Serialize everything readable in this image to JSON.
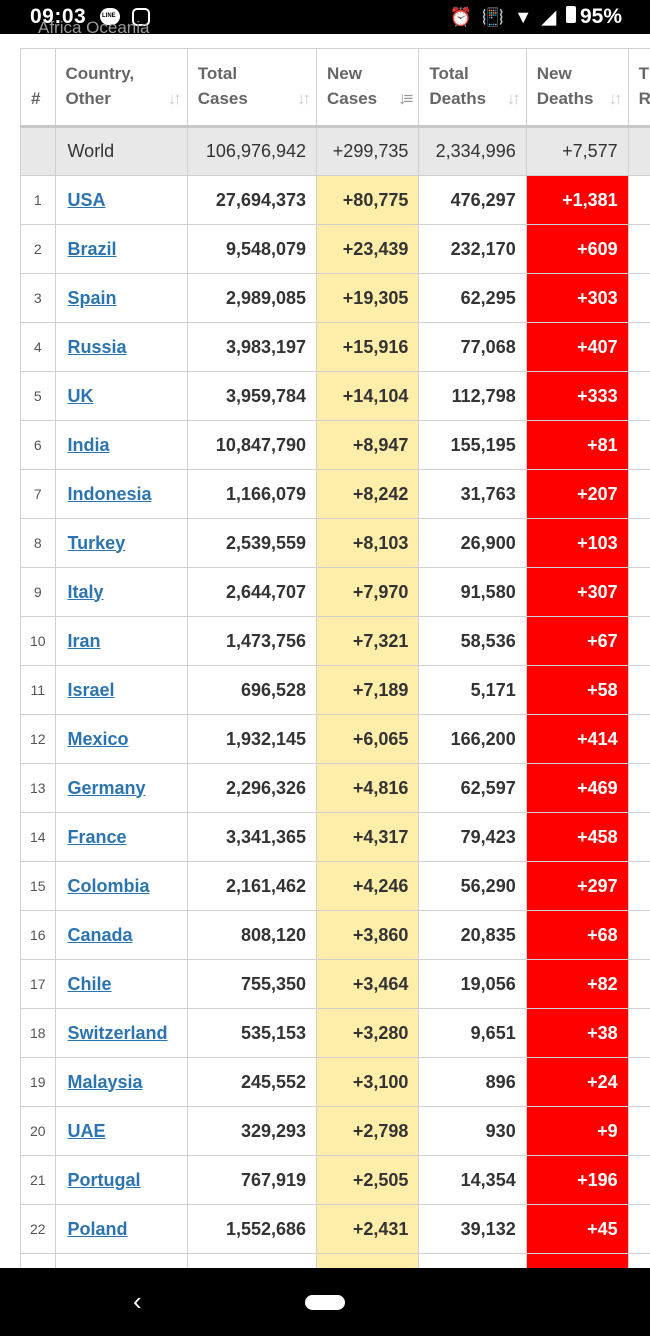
{
  "status_bar": {
    "time": "09:03",
    "battery": "95%",
    "icons": [
      "line-app-icon",
      "sync-icon",
      "alarm-icon",
      "vibrate-icon",
      "wifi-icon",
      "signal-icon",
      "battery-icon"
    ]
  },
  "breadcrumb_partial": "Africa     Oceania",
  "table": {
    "headers": [
      {
        "label1": "#",
        "label2": ""
      },
      {
        "label1": "Country,",
        "label2": "Other"
      },
      {
        "label1": "Total",
        "label2": "Cases"
      },
      {
        "label1": "New",
        "label2": "Cases"
      },
      {
        "label1": "Total",
        "label2": "Deaths"
      },
      {
        "label1": "New",
        "label2": "Deaths"
      },
      {
        "label1": "T",
        "label2": "R"
      }
    ],
    "world": {
      "country": "World",
      "total_cases": "106,976,942",
      "new_cases": "+299,735",
      "total_deaths": "2,334,996",
      "new_deaths": "+7,577"
    },
    "rows": [
      {
        "idx": "1",
        "country": "USA",
        "total_cases": "27,694,373",
        "new_cases": "+80,775",
        "total_deaths": "476,297",
        "new_deaths": "+1,381"
      },
      {
        "idx": "2",
        "country": "Brazil",
        "total_cases": "9,548,079",
        "new_cases": "+23,439",
        "total_deaths": "232,170",
        "new_deaths": "+609"
      },
      {
        "idx": "3",
        "country": "Spain",
        "total_cases": "2,989,085",
        "new_cases": "+19,305",
        "total_deaths": "62,295",
        "new_deaths": "+303"
      },
      {
        "idx": "4",
        "country": "Russia",
        "total_cases": "3,983,197",
        "new_cases": "+15,916",
        "total_deaths": "77,068",
        "new_deaths": "+407"
      },
      {
        "idx": "5",
        "country": "UK",
        "total_cases": "3,959,784",
        "new_cases": "+14,104",
        "total_deaths": "112,798",
        "new_deaths": "+333"
      },
      {
        "idx": "6",
        "country": "India",
        "total_cases": "10,847,790",
        "new_cases": "+8,947",
        "total_deaths": "155,195",
        "new_deaths": "+81"
      },
      {
        "idx": "7",
        "country": "Indonesia",
        "total_cases": "1,166,079",
        "new_cases": "+8,242",
        "total_deaths": "31,763",
        "new_deaths": "+207"
      },
      {
        "idx": "8",
        "country": "Turkey",
        "total_cases": "2,539,559",
        "new_cases": "+8,103",
        "total_deaths": "26,900",
        "new_deaths": "+103"
      },
      {
        "idx": "9",
        "country": "Italy",
        "total_cases": "2,644,707",
        "new_cases": "+7,970",
        "total_deaths": "91,580",
        "new_deaths": "+307"
      },
      {
        "idx": "10",
        "country": "Iran",
        "total_cases": "1,473,756",
        "new_cases": "+7,321",
        "total_deaths": "58,536",
        "new_deaths": "+67"
      },
      {
        "idx": "11",
        "country": "Israel",
        "total_cases": "696,528",
        "new_cases": "+7,189",
        "total_deaths": "5,171",
        "new_deaths": "+58"
      },
      {
        "idx": "12",
        "country": "Mexico",
        "total_cases": "1,932,145",
        "new_cases": "+6,065",
        "total_deaths": "166,200",
        "new_deaths": "+414"
      },
      {
        "idx": "13",
        "country": "Germany",
        "total_cases": "2,296,326",
        "new_cases": "+4,816",
        "total_deaths": "62,597",
        "new_deaths": "+469"
      },
      {
        "idx": "14",
        "country": "France",
        "total_cases": "3,341,365",
        "new_cases": "+4,317",
        "total_deaths": "79,423",
        "new_deaths": "+458"
      },
      {
        "idx": "15",
        "country": "Colombia",
        "total_cases": "2,161,462",
        "new_cases": "+4,246",
        "total_deaths": "56,290",
        "new_deaths": "+297"
      },
      {
        "idx": "16",
        "country": "Canada",
        "total_cases": "808,120",
        "new_cases": "+3,860",
        "total_deaths": "20,835",
        "new_deaths": "+68"
      },
      {
        "idx": "17",
        "country": "Chile",
        "total_cases": "755,350",
        "new_cases": "+3,464",
        "total_deaths": "19,056",
        "new_deaths": "+82"
      },
      {
        "idx": "18",
        "country": "Switzerland",
        "total_cases": "535,153",
        "new_cases": "+3,280",
        "total_deaths": "9,651",
        "new_deaths": "+38"
      },
      {
        "idx": "19",
        "country": "Malaysia",
        "total_cases": "245,552",
        "new_cases": "+3,100",
        "total_deaths": "896",
        "new_deaths": "+24"
      },
      {
        "idx": "20",
        "country": "UAE",
        "total_cases": "329,293",
        "new_cases": "+2,798",
        "total_deaths": "930",
        "new_deaths": "+9"
      },
      {
        "idx": "21",
        "country": "Portugal",
        "total_cases": "767,919",
        "new_cases": "+2,505",
        "total_deaths": "14,354",
        "new_deaths": "+196"
      },
      {
        "idx": "22",
        "country": "Poland",
        "total_cases": "1,552,686",
        "new_cases": "+2,431",
        "total_deaths": "39,132",
        "new_deaths": "+45"
      },
      {
        "idx": "",
        "country": "",
        "total_cases": "",
        "new_cases": "",
        "total_deaths": "",
        "new_deaths": ""
      }
    ]
  },
  "colors": {
    "new_cases_bg": "#ffeeaa",
    "new_deaths_bg": "#ff0000",
    "link": "#2b74b1",
    "world_bg": "#e8e8e8"
  }
}
